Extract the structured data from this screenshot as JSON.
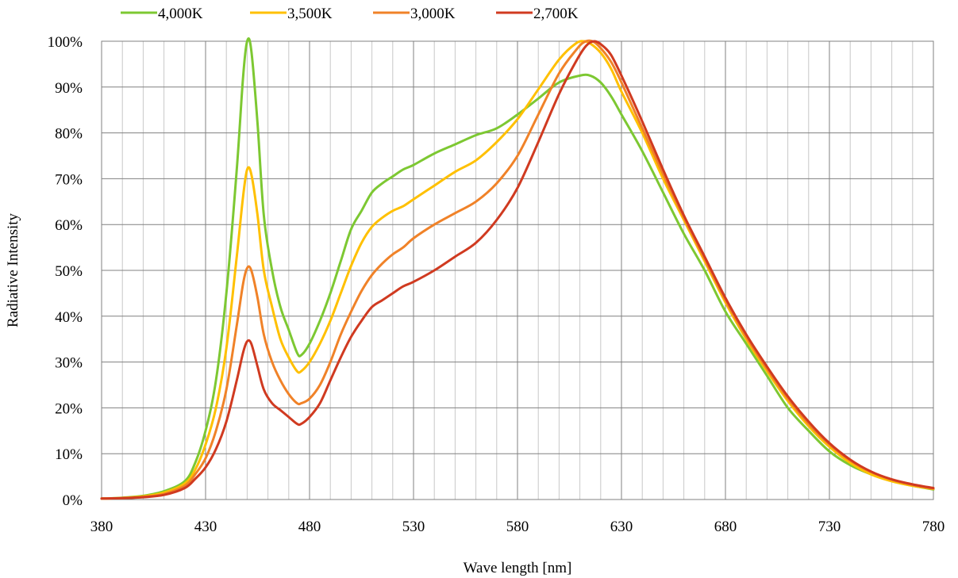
{
  "chart_data": {
    "type": "line",
    "title": "",
    "xlabel": "Wave length [nm]",
    "ylabel": "Radiative Intensity",
    "xlim": [
      380,
      780
    ],
    "ylim": [
      0,
      100
    ],
    "x_ticks": [
      380,
      430,
      480,
      530,
      580,
      630,
      680,
      730,
      780
    ],
    "x_tick_labels": [
      "380",
      "430",
      "480",
      "530",
      "580",
      "630",
      "680",
      "730",
      "780"
    ],
    "y_ticks": [
      0,
      10,
      20,
      30,
      40,
      50,
      60,
      70,
      80,
      90,
      100
    ],
    "y_tick_labels": [
      "0%",
      "10%",
      "20%",
      "30%",
      "40%",
      "50%",
      "60%",
      "70%",
      "80%",
      "90%",
      "100%"
    ],
    "x_minor_step": 10,
    "grid": true,
    "legend_position": "top",
    "y_unit": "percent",
    "series": [
      {
        "name": "4,000K",
        "color": "#7dc832",
        "points": [
          [
            380,
            0.2
          ],
          [
            390,
            0.4
          ],
          [
            400,
            0.8
          ],
          [
            410,
            1.8
          ],
          [
            420,
            4
          ],
          [
            425,
            8
          ],
          [
            430,
            15
          ],
          [
            435,
            26
          ],
          [
            440,
            45
          ],
          [
            445,
            72
          ],
          [
            448,
            92
          ],
          [
            450,
            100
          ],
          [
            452,
            98
          ],
          [
            455,
            82
          ],
          [
            458,
            62
          ],
          [
            462,
            50
          ],
          [
            466,
            42
          ],
          [
            470,
            37
          ],
          [
            474,
            32
          ],
          [
            476,
            31.5
          ],
          [
            480,
            34
          ],
          [
            485,
            39
          ],
          [
            490,
            45
          ],
          [
            495,
            52
          ],
          [
            500,
            59
          ],
          [
            505,
            63
          ],
          [
            510,
            67
          ],
          [
            515,
            69
          ],
          [
            520,
            70.5
          ],
          [
            525,
            72
          ],
          [
            530,
            73
          ],
          [
            540,
            75.5
          ],
          [
            550,
            77.5
          ],
          [
            560,
            79.5
          ],
          [
            570,
            81
          ],
          [
            580,
            84
          ],
          [
            590,
            87.5
          ],
          [
            600,
            91
          ],
          [
            610,
            92.5
          ],
          [
            615,
            92.5
          ],
          [
            620,
            91
          ],
          [
            625,
            88
          ],
          [
            630,
            84
          ],
          [
            640,
            76
          ],
          [
            650,
            67
          ],
          [
            660,
            58
          ],
          [
            670,
            50
          ],
          [
            680,
            41
          ],
          [
            690,
            34
          ],
          [
            700,
            27
          ],
          [
            710,
            20
          ],
          [
            720,
            15
          ],
          [
            730,
            10.5
          ],
          [
            740,
            7.5
          ],
          [
            750,
            5.5
          ],
          [
            760,
            4
          ],
          [
            770,
            3
          ],
          [
            780,
            2.2
          ]
        ]
      },
      {
        "name": "3,500K",
        "color": "#ffc000",
        "points": [
          [
            380,
            0.2
          ],
          [
            390,
            0.35
          ],
          [
            400,
            0.7
          ],
          [
            410,
            1.5
          ],
          [
            420,
            3.5
          ],
          [
            425,
            6.5
          ],
          [
            430,
            12
          ],
          [
            435,
            20
          ],
          [
            440,
            33
          ],
          [
            445,
            53
          ],
          [
            448,
            66
          ],
          [
            450,
            72
          ],
          [
            452,
            71
          ],
          [
            455,
            62
          ],
          [
            458,
            50
          ],
          [
            462,
            42
          ],
          [
            466,
            35
          ],
          [
            470,
            31
          ],
          [
            474,
            28
          ],
          [
            476,
            28
          ],
          [
            480,
            30
          ],
          [
            485,
            34
          ],
          [
            490,
            39
          ],
          [
            495,
            45
          ],
          [
            500,
            51
          ],
          [
            505,
            56
          ],
          [
            510,
            59.5
          ],
          [
            515,
            61.5
          ],
          [
            520,
            63
          ],
          [
            525,
            64
          ],
          [
            530,
            65.5
          ],
          [
            540,
            68.5
          ],
          [
            550,
            71.5
          ],
          [
            560,
            74
          ],
          [
            570,
            78
          ],
          [
            580,
            83
          ],
          [
            590,
            89.5
          ],
          [
            600,
            96
          ],
          [
            608,
            99.5
          ],
          [
            612,
            100
          ],
          [
            615,
            99.5
          ],
          [
            620,
            97.5
          ],
          [
            625,
            94
          ],
          [
            630,
            89
          ],
          [
            640,
            80
          ],
          [
            650,
            70
          ],
          [
            660,
            61
          ],
          [
            670,
            52
          ],
          [
            680,
            43
          ],
          [
            690,
            35
          ],
          [
            700,
            28
          ],
          [
            710,
            21.5
          ],
          [
            720,
            16
          ],
          [
            730,
            11.5
          ],
          [
            740,
            8
          ],
          [
            750,
            5.5
          ],
          [
            760,
            4
          ],
          [
            770,
            3
          ],
          [
            780,
            2.3
          ]
        ]
      },
      {
        "name": "3,000K",
        "color": "#f08228",
        "points": [
          [
            380,
            0.2
          ],
          [
            390,
            0.3
          ],
          [
            400,
            0.55
          ],
          [
            410,
            1.2
          ],
          [
            420,
            3
          ],
          [
            425,
            5.5
          ],
          [
            430,
            9
          ],
          [
            435,
            15
          ],
          [
            440,
            24
          ],
          [
            445,
            38
          ],
          [
            448,
            47
          ],
          [
            450,
            50.5
          ],
          [
            452,
            50
          ],
          [
            455,
            44
          ],
          [
            458,
            36
          ],
          [
            462,
            30
          ],
          [
            466,
            26
          ],
          [
            470,
            23
          ],
          [
            474,
            21
          ],
          [
            476,
            21
          ],
          [
            480,
            22
          ],
          [
            485,
            25
          ],
          [
            490,
            30
          ],
          [
            495,
            36
          ],
          [
            500,
            41
          ],
          [
            505,
            45.5
          ],
          [
            510,
            49
          ],
          [
            515,
            51.5
          ],
          [
            520,
            53.5
          ],
          [
            525,
            55
          ],
          [
            530,
            57
          ],
          [
            540,
            60
          ],
          [
            550,
            62.5
          ],
          [
            560,
            65
          ],
          [
            570,
            69
          ],
          [
            580,
            75
          ],
          [
            590,
            84
          ],
          [
            600,
            93
          ],
          [
            608,
            98
          ],
          [
            612,
            99.8
          ],
          [
            616,
            100
          ],
          [
            620,
            98.5
          ],
          [
            625,
            95.5
          ],
          [
            630,
            91
          ],
          [
            640,
            81
          ],
          [
            650,
            71
          ],
          [
            660,
            61.5
          ],
          [
            670,
            52.5
          ],
          [
            680,
            43.5
          ],
          [
            690,
            35.5
          ],
          [
            700,
            28.5
          ],
          [
            710,
            22
          ],
          [
            720,
            16.5
          ],
          [
            730,
            12
          ],
          [
            740,
            8.5
          ],
          [
            750,
            6
          ],
          [
            760,
            4.3
          ],
          [
            770,
            3.2
          ],
          [
            780,
            2.4
          ]
        ]
      },
      {
        "name": "2,700K",
        "color": "#d03a20",
        "points": [
          [
            380,
            0.2
          ],
          [
            390,
            0.3
          ],
          [
            400,
            0.5
          ],
          [
            410,
            1
          ],
          [
            420,
            2.5
          ],
          [
            425,
            4.5
          ],
          [
            430,
            7
          ],
          [
            435,
            11
          ],
          [
            440,
            17
          ],
          [
            445,
            26
          ],
          [
            448,
            32
          ],
          [
            450,
            34.5
          ],
          [
            452,
            34
          ],
          [
            455,
            29
          ],
          [
            458,
            24
          ],
          [
            462,
            21
          ],
          [
            466,
            19.5
          ],
          [
            470,
            18
          ],
          [
            474,
            16.5
          ],
          [
            476,
            16.5
          ],
          [
            480,
            18
          ],
          [
            485,
            21
          ],
          [
            490,
            26
          ],
          [
            495,
            31
          ],
          [
            500,
            35.5
          ],
          [
            505,
            39
          ],
          [
            510,
            42
          ],
          [
            515,
            43.5
          ],
          [
            520,
            45
          ],
          [
            525,
            46.5
          ],
          [
            530,
            47.5
          ],
          [
            540,
            50
          ],
          [
            550,
            53
          ],
          [
            560,
            56
          ],
          [
            570,
            61
          ],
          [
            580,
            68
          ],
          [
            590,
            78
          ],
          [
            600,
            88.5
          ],
          [
            608,
            95.5
          ],
          [
            613,
            99
          ],
          [
            617,
            100
          ],
          [
            621,
            99
          ],
          [
            625,
            97
          ],
          [
            630,
            92.5
          ],
          [
            640,
            82.5
          ],
          [
            650,
            72
          ],
          [
            660,
            62
          ],
          [
            670,
            53
          ],
          [
            680,
            44
          ],
          [
            690,
            36
          ],
          [
            700,
            29
          ],
          [
            710,
            22.5
          ],
          [
            720,
            17
          ],
          [
            730,
            12.3
          ],
          [
            740,
            8.7
          ],
          [
            750,
            6.1
          ],
          [
            760,
            4.4
          ],
          [
            770,
            3.3
          ],
          [
            780,
            2.5
          ]
        ]
      }
    ]
  }
}
